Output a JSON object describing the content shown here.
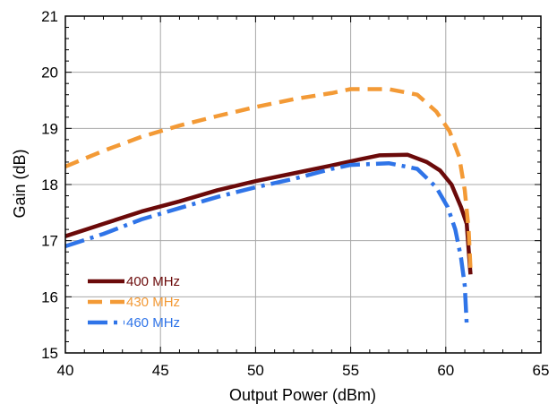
{
  "chart_data": {
    "type": "line",
    "title": "",
    "xlabel": "Output Power (dBm)",
    "ylabel": "Gain (dB)",
    "xlim": [
      40,
      65
    ],
    "ylim": [
      15,
      21
    ],
    "xticks": [
      40,
      45,
      50,
      55,
      60,
      65
    ],
    "yticks": [
      15,
      16,
      17,
      18,
      19,
      20,
      21
    ],
    "grid": true,
    "minor_ticks": true,
    "legend_position": "bottom-left",
    "series": [
      {
        "name": "400 MHz",
        "color": "#6b0a0a",
        "line_style": "solid",
        "points": [
          [
            40.0,
            17.08
          ],
          [
            42.0,
            17.3
          ],
          [
            44.0,
            17.52
          ],
          [
            46.0,
            17.7
          ],
          [
            48.0,
            17.9
          ],
          [
            50.0,
            18.06
          ],
          [
            52.0,
            18.2
          ],
          [
            54.0,
            18.34
          ],
          [
            55.5,
            18.45
          ],
          [
            56.5,
            18.52
          ],
          [
            58.0,
            18.53
          ],
          [
            59.0,
            18.4
          ],
          [
            59.7,
            18.25
          ],
          [
            60.3,
            18.0
          ],
          [
            60.8,
            17.6
          ],
          [
            61.1,
            17.3
          ],
          [
            61.3,
            16.4
          ]
        ]
      },
      {
        "name": "430 MHz",
        "color": "#f39a36",
        "line_style": "dashed",
        "points": [
          [
            40.0,
            18.32
          ],
          [
            42.0,
            18.6
          ],
          [
            44.0,
            18.85
          ],
          [
            46.0,
            19.05
          ],
          [
            48.0,
            19.22
          ],
          [
            50.0,
            19.38
          ],
          [
            52.0,
            19.52
          ],
          [
            54.0,
            19.63
          ],
          [
            55.0,
            19.7
          ],
          [
            57.0,
            19.7
          ],
          [
            58.5,
            19.6
          ],
          [
            59.5,
            19.3
          ],
          [
            60.2,
            18.95
          ],
          [
            60.7,
            18.5
          ],
          [
            61.0,
            17.9
          ],
          [
            61.2,
            17.2
          ],
          [
            61.3,
            16.5
          ]
        ]
      },
      {
        "name": "460 MHz",
        "color": "#2f74e8",
        "line_style": "dashdot",
        "points": [
          [
            40.0,
            16.9
          ],
          [
            42.0,
            17.12
          ],
          [
            44.0,
            17.38
          ],
          [
            46.0,
            17.58
          ],
          [
            48.0,
            17.78
          ],
          [
            50.0,
            17.95
          ],
          [
            52.0,
            18.1
          ],
          [
            54.0,
            18.28
          ],
          [
            55.0,
            18.35
          ],
          [
            57.0,
            18.38
          ],
          [
            58.5,
            18.28
          ],
          [
            59.5,
            17.95
          ],
          [
            60.1,
            17.6
          ],
          [
            60.5,
            17.2
          ],
          [
            60.8,
            16.7
          ],
          [
            61.0,
            16.2
          ],
          [
            61.1,
            15.5
          ]
        ]
      }
    ]
  }
}
